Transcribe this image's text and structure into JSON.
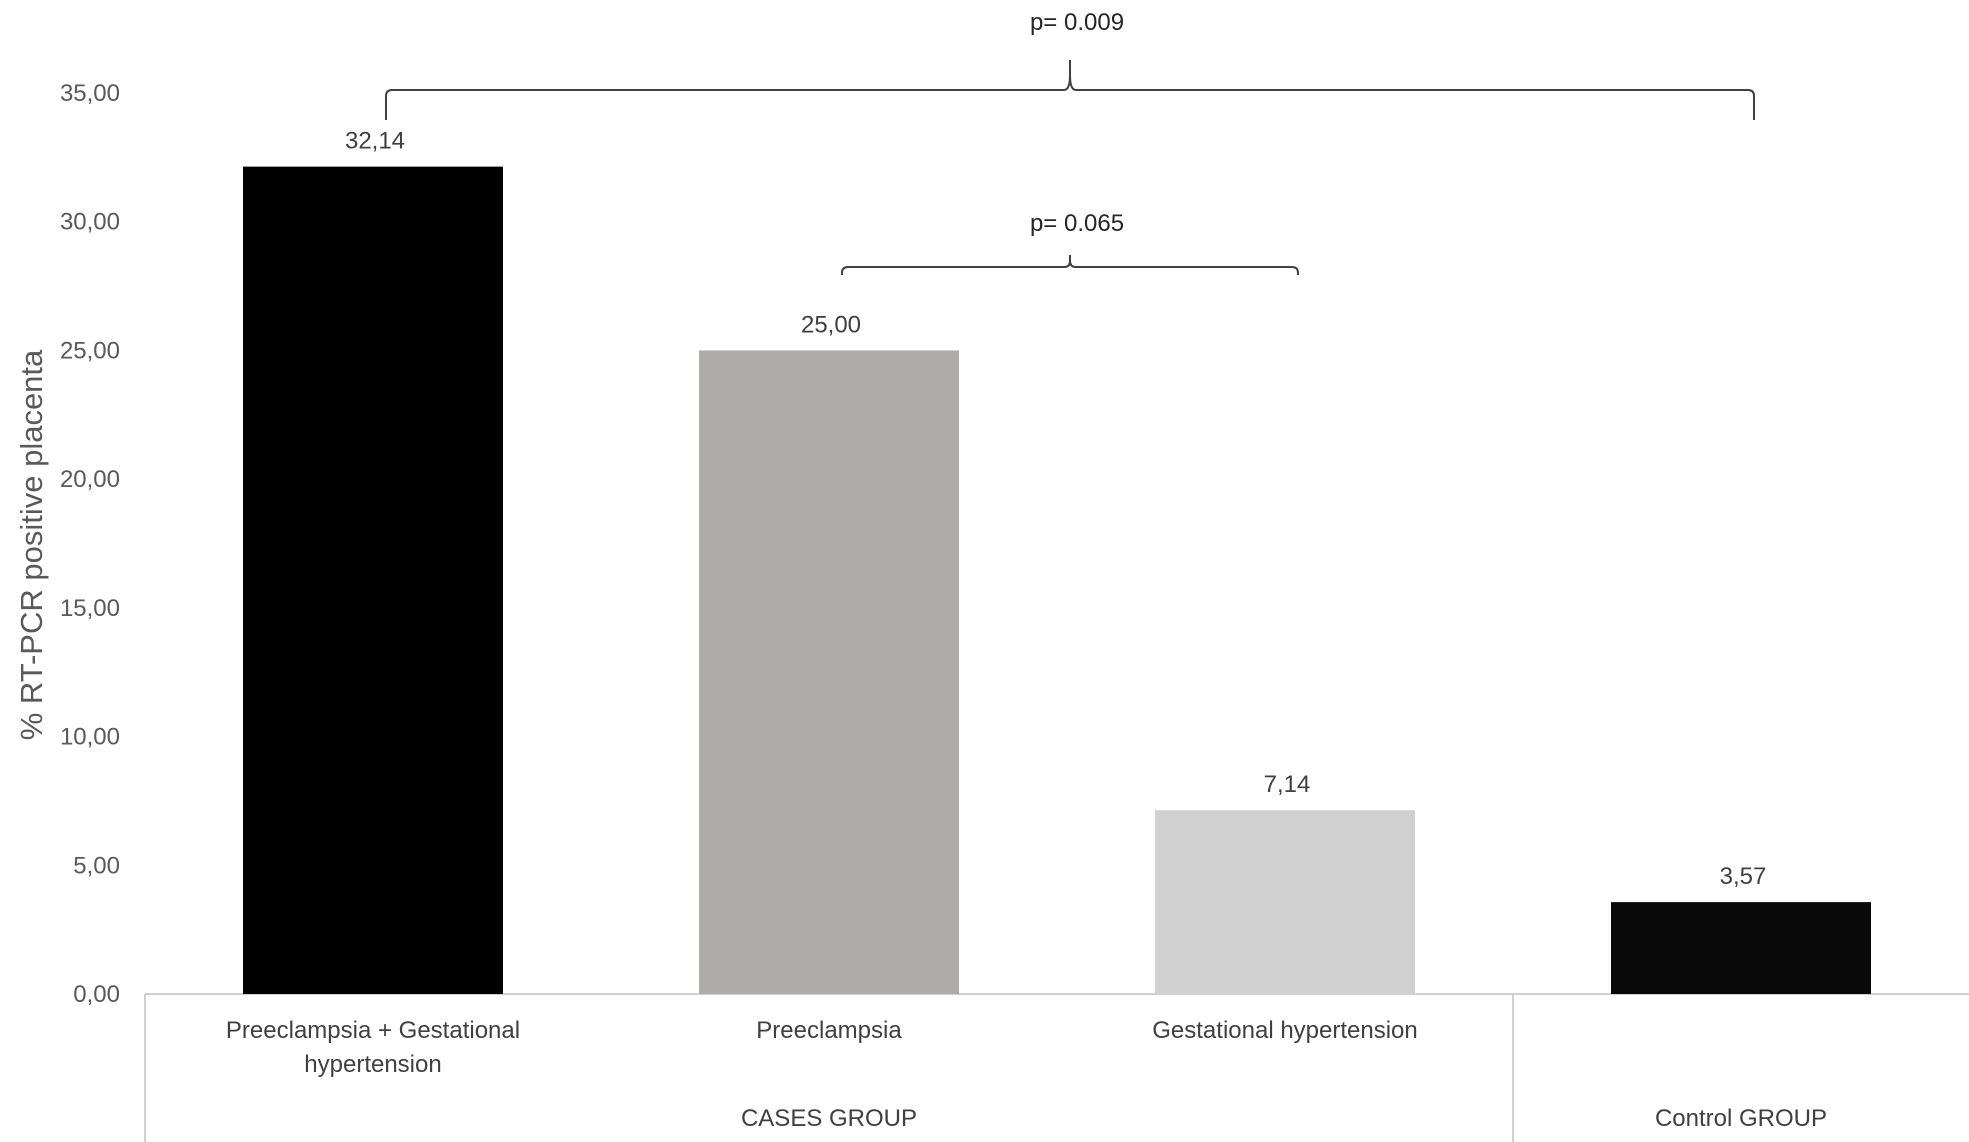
{
  "chart_data": {
    "type": "bar",
    "categories": [
      "Preeclampsia + Gestational hypertension",
      "Preeclampsia",
      "Gestational hypertension",
      ""
    ],
    "category_lines": [
      [
        "Preeclampsia + Gestational",
        "hypertension"
      ],
      [
        "Preeclampsia"
      ],
      [
        "Gestational hypertension"
      ],
      [
        ""
      ]
    ],
    "values": [
      32.14,
      25.0,
      7.14,
      3.57
    ],
    "value_labels": [
      "32,14",
      "25,00",
      "7,14",
      "3,57"
    ],
    "bar_colors": [
      "#000000",
      "#aeacab",
      "#d1d0d0",
      "#0a0a0a"
    ],
    "groups": [
      {
        "label": "CASES GROUP",
        "categories": [
          0,
          1,
          2
        ]
      },
      {
        "label": "Control GROUP",
        "categories": [
          3
        ]
      }
    ],
    "ylabel": "% RT-PCR positive placenta",
    "xlabel": "",
    "title": "",
    "ylim": [
      0,
      35
    ],
    "yticks": [
      0,
      5,
      10,
      15,
      20,
      25,
      30,
      35
    ],
    "ytick_labels": [
      "0,00",
      "5,00",
      "10,00",
      "15,00",
      "20,00",
      "25,00",
      "30,00",
      "35,00"
    ],
    "grid": false,
    "legend": "none",
    "annotations": [
      {
        "type": "bracket",
        "label": "p= 0.009",
        "from_category": 0,
        "to_category": 3
      },
      {
        "type": "bracket",
        "label": "p= 0.065",
        "from_category": 1,
        "to_category": 2
      }
    ]
  }
}
